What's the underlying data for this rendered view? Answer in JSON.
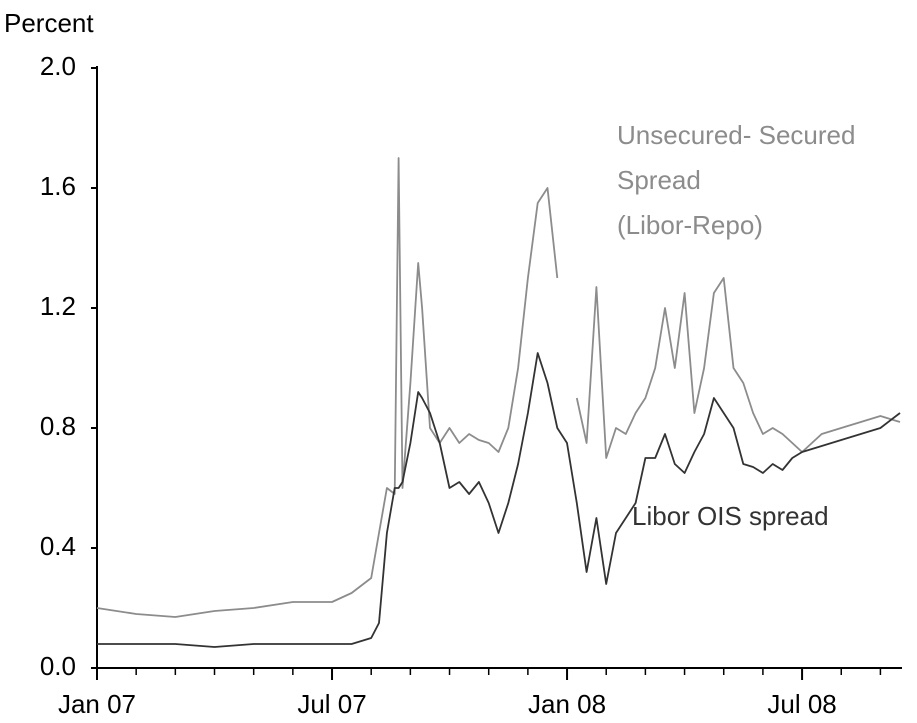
{
  "chart_data": {
    "type": "line",
    "ylabel": "Percent",
    "x": [
      0,
      1,
      2,
      3,
      4,
      5,
      6,
      6.5,
      7,
      7.2,
      7.4,
      7.6,
      7.7,
      7.8,
      8.0,
      8.2,
      8.3,
      8.5,
      8.75,
      9,
      9.25,
      9.5,
      9.75,
      10,
      10.25,
      10.5,
      10.75,
      11,
      11.25,
      11.5,
      11.75,
      12,
      12.25,
      12.5,
      12.75,
      13,
      13.25,
      13.5,
      13.75,
      14,
      14.25,
      14.5,
      14.75,
      15,
      15.25,
      15.5,
      15.75,
      16,
      16.25,
      16.5,
      16.75,
      17,
      17.25,
      17.5,
      17.75,
      18,
      18.5,
      19,
      19.5,
      20,
      20.5
    ],
    "series": [
      {
        "color": "#8c8c8c",
        "values": [
          0.2,
          0.18,
          0.17,
          0.19,
          0.2,
          0.22,
          0.22,
          0.25,
          0.3,
          0.45,
          0.6,
          0.58,
          1.7,
          0.6,
          0.95,
          1.35,
          1.2,
          0.8,
          0.75,
          0.8,
          0.75,
          0.78,
          0.76,
          0.75,
          0.72,
          0.8,
          1.0,
          1.3,
          1.55,
          1.6,
          1.3,
          null,
          0.9,
          0.75,
          1.27,
          0.7,
          0.8,
          0.78,
          0.85,
          0.9,
          1.0,
          1.2,
          1.0,
          1.25,
          0.85,
          1.0,
          1.25,
          1.3,
          1.0,
          0.95,
          0.85,
          0.78,
          0.8,
          0.78,
          0.75,
          0.72,
          0.78,
          0.8,
          0.82,
          0.84,
          0.82
        ]
      },
      {
        "color": "#333333",
        "values": [
          0.08,
          0.08,
          0.08,
          0.07,
          0.08,
          0.08,
          0.08,
          0.08,
          0.1,
          0.15,
          0.45,
          0.6,
          0.6,
          0.62,
          0.75,
          0.92,
          0.9,
          0.85,
          0.75,
          0.6,
          0.62,
          0.58,
          0.62,
          0.55,
          0.45,
          0.55,
          0.68,
          0.85,
          1.05,
          0.95,
          0.8,
          0.75,
          0.55,
          0.32,
          0.5,
          0.28,
          0.45,
          0.5,
          0.55,
          0.7,
          0.7,
          0.78,
          0.68,
          0.65,
          0.72,
          0.78,
          0.9,
          0.85,
          0.8,
          0.68,
          0.67,
          0.65,
          0.68,
          0.66,
          0.7,
          0.72,
          0.74,
          0.76,
          0.78,
          0.8,
          0.85
        ]
      }
    ],
    "annotations": [
      {
        "lines": [
          "Unsecured- Secured",
          "Spread",
          "(Libor-Repo)"
        ],
        "color": "#8c8c8c"
      },
      {
        "lines": [
          "Libor OIS spread"
        ],
        "color": "#333333"
      }
    ],
    "xlim": [
      0,
      20.5
    ],
    "xticks": [
      {
        "value": 0,
        "label": "Jan 07"
      },
      {
        "value": 6,
        "label": "Jul 07"
      },
      {
        "value": 12,
        "label": "Jan 08"
      },
      {
        "value": 18,
        "label": "Jul 08"
      }
    ],
    "xminorticks": [
      1,
      2,
      3,
      4,
      5,
      7,
      8,
      9,
      10,
      11,
      13,
      14,
      15,
      16,
      17,
      19,
      20
    ],
    "ylim": [
      0,
      2
    ],
    "yticks": [
      {
        "value": 0,
        "label": "0.0"
      },
      {
        "value": 0.4,
        "label": "0.4"
      },
      {
        "value": 0.8,
        "label": "0.8"
      },
      {
        "value": 1.2,
        "label": "1.2"
      },
      {
        "value": 1.6,
        "label": "1.6"
      },
      {
        "value": 2,
        "label": "2.0"
      }
    ]
  }
}
